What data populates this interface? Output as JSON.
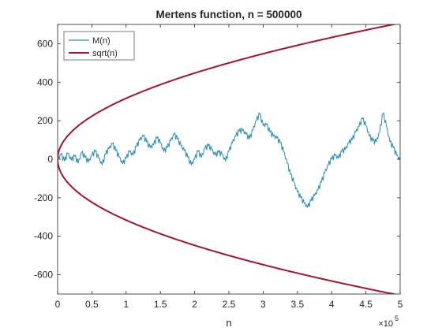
{
  "chart_data": {
    "type": "line",
    "title": "Mertens function, n = 500000",
    "xlabel": "n",
    "ylabel": "",
    "x_exponent_label": "×10",
    "x_exponent_power": "5",
    "xlim": [
      0,
      500000
    ],
    "ylim": [
      -700,
      700
    ],
    "xticks": [
      0,
      50000,
      100000,
      150000,
      200000,
      250000,
      300000,
      350000,
      400000,
      450000,
      500000
    ],
    "xtick_labels": [
      "0",
      "0.5",
      "1",
      "1.5",
      "2",
      "2.5",
      "3",
      "3.5",
      "4",
      "4.5",
      "5"
    ],
    "yticks": [
      600,
      400,
      200,
      0,
      -200,
      -400,
      -600
    ],
    "ytick_labels": [
      "600",
      "400",
      "200",
      "0",
      "-200",
      "-400",
      "-600"
    ],
    "grid": false,
    "legend_position": "top-left",
    "series": [
      {
        "name": "M(n)",
        "color": "#2a8cb4",
        "x": [
          0,
          5000,
          10000,
          15000,
          20000,
          25000,
          30000,
          35000,
          40000,
          45000,
          50000,
          55000,
          60000,
          65000,
          70000,
          75000,
          80000,
          85000,
          90000,
          95000,
          100000,
          105000,
          110000,
          115000,
          120000,
          125000,
          130000,
          135000,
          140000,
          145000,
          150000,
          155000,
          160000,
          165000,
          170000,
          175000,
          180000,
          185000,
          190000,
          195000,
          200000,
          205000,
          210000,
          215000,
          220000,
          225000,
          230000,
          235000,
          240000,
          245000,
          250000,
          255000,
          260000,
          265000,
          270000,
          275000,
          280000,
          285000,
          290000,
          295000,
          300000,
          305000,
          310000,
          315000,
          320000,
          325000,
          330000,
          335000,
          340000,
          345000,
          350000,
          355000,
          360000,
          365000,
          370000,
          375000,
          380000,
          385000,
          390000,
          395000,
          400000,
          405000,
          410000,
          415000,
          420000,
          425000,
          430000,
          435000,
          440000,
          445000,
          450000,
          455000,
          460000,
          465000,
          470000,
          475000,
          480000,
          485000,
          490000,
          495000,
          500000
        ],
        "values": [
          0,
          25,
          -10,
          30,
          -5,
          15,
          -20,
          35,
          10,
          -15,
          20,
          40,
          5,
          -30,
          25,
          55,
          80,
          45,
          10,
          -25,
          5,
          40,
          20,
          65,
          100,
          120,
          90,
          60,
          75,
          110,
          85,
          40,
          60,
          95,
          130,
          105,
          70,
          45,
          10,
          -30,
          0,
          40,
          10,
          55,
          70,
          50,
          20,
          35,
          25,
          -10,
          40,
          85,
          120,
          145,
          150,
          130,
          105,
          150,
          200,
          235,
          175,
          180,
          140,
          120,
          110,
          85,
          40,
          -20,
          -80,
          -120,
          -170,
          -200,
          -230,
          -250,
          -215,
          -190,
          -160,
          -120,
          -70,
          -30,
          0,
          20,
          5,
          40,
          50,
          85,
          100,
          140,
          170,
          210,
          175,
          120,
          95,
          90,
          140,
          240,
          170,
          90,
          60,
          20,
          -5
        ]
      },
      {
        "name": "sqrt(n)",
        "color": "#a2142f",
        "function": "±sqrt(n)"
      }
    ]
  }
}
